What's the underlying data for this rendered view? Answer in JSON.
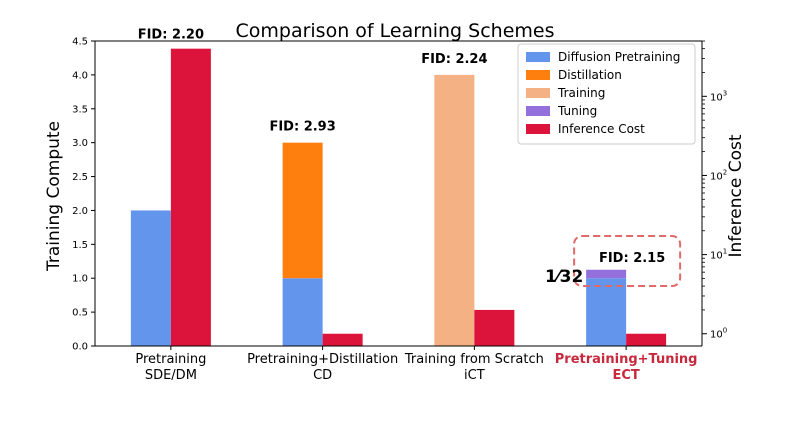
{
  "chart_data": {
    "type": "bar",
    "title": "Comparison of Learning Schemes",
    "ylabel": "Training Compute",
    "ylabel_right": "Inference Cost",
    "ylim": [
      0,
      4.5
    ],
    "yticks": [
      "0.0",
      "0.5",
      "1.0",
      "1.5",
      "2.0",
      "2.5",
      "3.0",
      "3.5",
      "4.0",
      "4.5"
    ],
    "right_scale": "log",
    "right_ylim": [
      0.7,
      5000
    ],
    "right_ticks": [
      {
        "base": "10",
        "exp": "0",
        "value": 1
      },
      {
        "base": "10",
        "exp": "1",
        "value": 10
      },
      {
        "base": "10",
        "exp": "2",
        "value": 100
      },
      {
        "base": "10",
        "exp": "3",
        "value": 1000
      }
    ],
    "categories": [
      {
        "line1": "Pretraining",
        "line2": "SDE/DM",
        "highlight": false
      },
      {
        "line1": "Pretraining+Distillation",
        "line2": "CD",
        "highlight": false
      },
      {
        "line1": "Training from Scratch",
        "line2": "iCT",
        "highlight": false
      },
      {
        "line1": "Pretraining+Tuning",
        "line2": "ECT",
        "highlight": true
      }
    ],
    "stacks": [
      [
        {
          "series": "Diffusion Pretraining",
          "value": 2.0
        }
      ],
      [
        {
          "series": "Diffusion Pretraining",
          "value": 1.0
        },
        {
          "series": "Distillation",
          "value": 2.0
        }
      ],
      [
        {
          "series": "Training",
          "value": 4.0
        }
      ],
      [
        {
          "series": "Diffusion Pretraining",
          "value": 1.0
        },
        {
          "series": "Tuning",
          "value": 0.125
        }
      ]
    ],
    "inference_cost": [
      4000,
      1.0,
      2.0,
      1.0
    ],
    "fid_labels": [
      "FID: 2.20",
      "FID: 2.93",
      "FID: 2.24",
      "FID: 2.15"
    ],
    "fid_anchor": [
      "inference",
      "compute",
      "compute",
      "compute"
    ],
    "annotation": {
      "text": "1⁄32",
      "category_index": 3
    },
    "legend": {
      "placement": "top-right",
      "entries": [
        {
          "name": "Diffusion Pretraining",
          "color": "#6495ED"
        },
        {
          "name": "Distillation",
          "color": "#FF7F0E"
        },
        {
          "name": "Training",
          "color": "#F4B183"
        },
        {
          "name": "Tuning",
          "color": "#9370DB"
        },
        {
          "name": "Inference Cost",
          "color": "#DC143C"
        }
      ]
    },
    "highlight_color": "#C8283C",
    "box_color": "#E06A6A"
  }
}
